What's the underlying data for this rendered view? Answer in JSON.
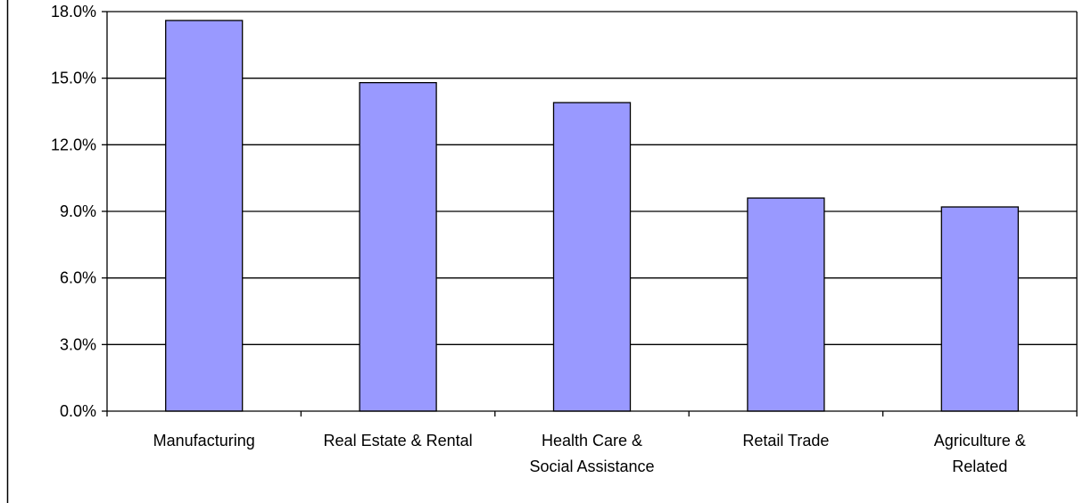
{
  "chart_data": {
    "type": "bar",
    "title": "",
    "xlabel": "",
    "ylabel": "",
    "categories": [
      [
        "Manufacturing"
      ],
      [
        "Real Estate & Rental"
      ],
      [
        "Health Care &",
        "Social Assistance"
      ],
      [
        "Retail Trade"
      ],
      [
        "Agriculture &",
        "Related"
      ]
    ],
    "values": [
      17.6,
      14.8,
      13.9,
      9.6,
      9.2
    ],
    "ylim": [
      0,
      18
    ],
    "yticks": [
      0,
      3,
      6,
      9,
      12,
      15,
      18
    ],
    "ytick_labels": [
      "0.0%",
      "3.0%",
      "6.0%",
      "9.0%",
      "12.0%",
      "15.0%",
      "18.0%"
    ],
    "grid": true,
    "legend": "none",
    "colors": {
      "bar_fill": "#9999ff",
      "bar_stroke": "#000000",
      "grid": "#000000",
      "axis": "#000000"
    }
  }
}
